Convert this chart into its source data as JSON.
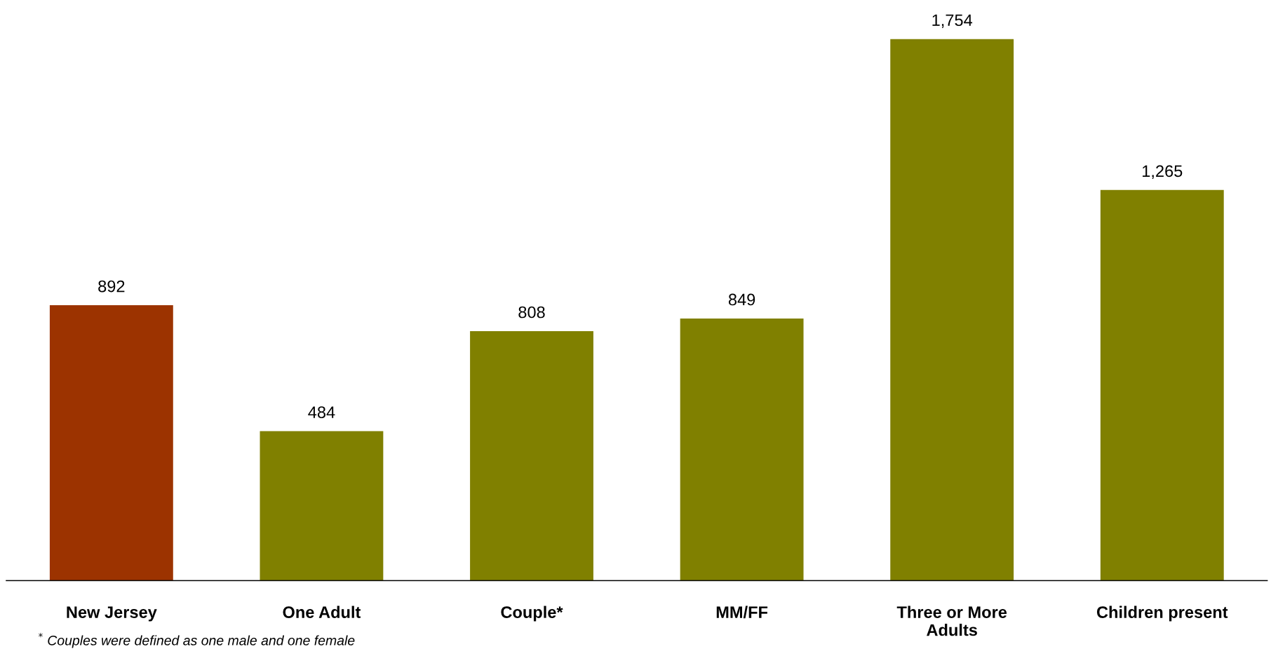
{
  "chart_data": {
    "type": "bar",
    "categories": [
      "New Jersey",
      "One Adult",
      "Couple*",
      "MM/FF",
      "Three or More\nAdults",
      "Children present"
    ],
    "values": [
      892,
      484,
      808,
      849,
      1754,
      1265
    ],
    "colors": [
      "#9c3300",
      "#808000",
      "#808000",
      "#808000",
      "#808000",
      "#808000"
    ],
    "data_labels": true,
    "value_labels": [
      "892",
      "484",
      "808",
      "849",
      "1,754",
      "1,265"
    ],
    "annotations": [
      "$^{*}$ Couples were defined as one male and one female"
    ],
    "grid": false,
    "legend": false
  }
}
